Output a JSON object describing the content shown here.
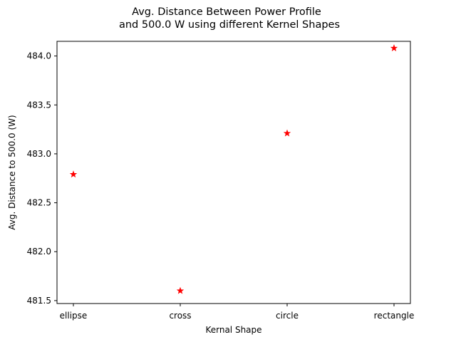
{
  "chart_data": {
    "type": "scatter",
    "title_lines": [
      "Avg. Distance Between Power Profile",
      "and 500.0 W using different Kernel Shapes"
    ],
    "xlabel": "Kernal Shape",
    "ylabel": "Avg. Distance to 500.0 (W)",
    "categories": [
      "ellipse",
      "cross",
      "circle",
      "rectangle"
    ],
    "values": [
      482.79,
      481.6,
      483.21,
      484.08
    ],
    "yticks": [
      "481.5",
      "482.0",
      "482.5",
      "483.0",
      "483.5",
      "484.0"
    ],
    "ylim": [
      481.47,
      484.15
    ],
    "marker": "star",
    "marker_color": "#ff0000",
    "grid": false
  }
}
